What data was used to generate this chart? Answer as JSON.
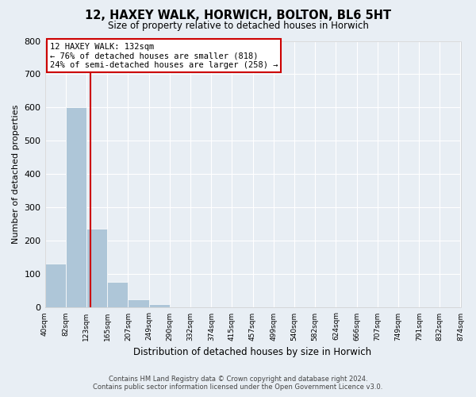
{
  "title": "12, HAXEY WALK, HORWICH, BOLTON, BL6 5HT",
  "subtitle": "Size of property relative to detached houses in Horwich",
  "xlabel": "Distribution of detached houses by size in Horwich",
  "ylabel": "Number of detached properties",
  "bar_edges": [
    40,
    82,
    123,
    165,
    207,
    249,
    290,
    332,
    374,
    415,
    457,
    499,
    540,
    582,
    624,
    666,
    707,
    749,
    791,
    832,
    874
  ],
  "bar_heights": [
    133,
    601,
    236,
    78,
    24,
    10,
    0,
    0,
    0,
    0,
    0,
    0,
    0,
    0,
    0,
    0,
    0,
    0,
    0,
    0
  ],
  "bar_color": "#aec6d8",
  "bar_edgecolor": "#aec6d8",
  "property_line_x": 132,
  "property_line_color": "#cc0000",
  "ylim": [
    0,
    800
  ],
  "yticks": [
    0,
    100,
    200,
    300,
    400,
    500,
    600,
    700,
    800
  ],
  "annotation_line1": "12 HAXEY WALK: 132sqm",
  "annotation_line2": "← 76% of detached houses are smaller (818)",
  "annotation_line3": "24% of semi-detached houses are larger (258) →",
  "annotation_box_color": "#ffffff",
  "annotation_box_edgecolor": "#cc0000",
  "footer_line1": "Contains HM Land Registry data © Crown copyright and database right 2024.",
  "footer_line2": "Contains public sector information licensed under the Open Government Licence v3.0.",
  "background_color": "#e8eef4",
  "grid_color": "#ffffff",
  "tick_labels": [
    "40sqm",
    "82sqm",
    "123sqm",
    "165sqm",
    "207sqm",
    "249sqm",
    "290sqm",
    "332sqm",
    "374sqm",
    "415sqm",
    "457sqm",
    "499sqm",
    "540sqm",
    "582sqm",
    "624sqm",
    "666sqm",
    "707sqm",
    "749sqm",
    "791sqm",
    "832sqm",
    "874sqm"
  ]
}
